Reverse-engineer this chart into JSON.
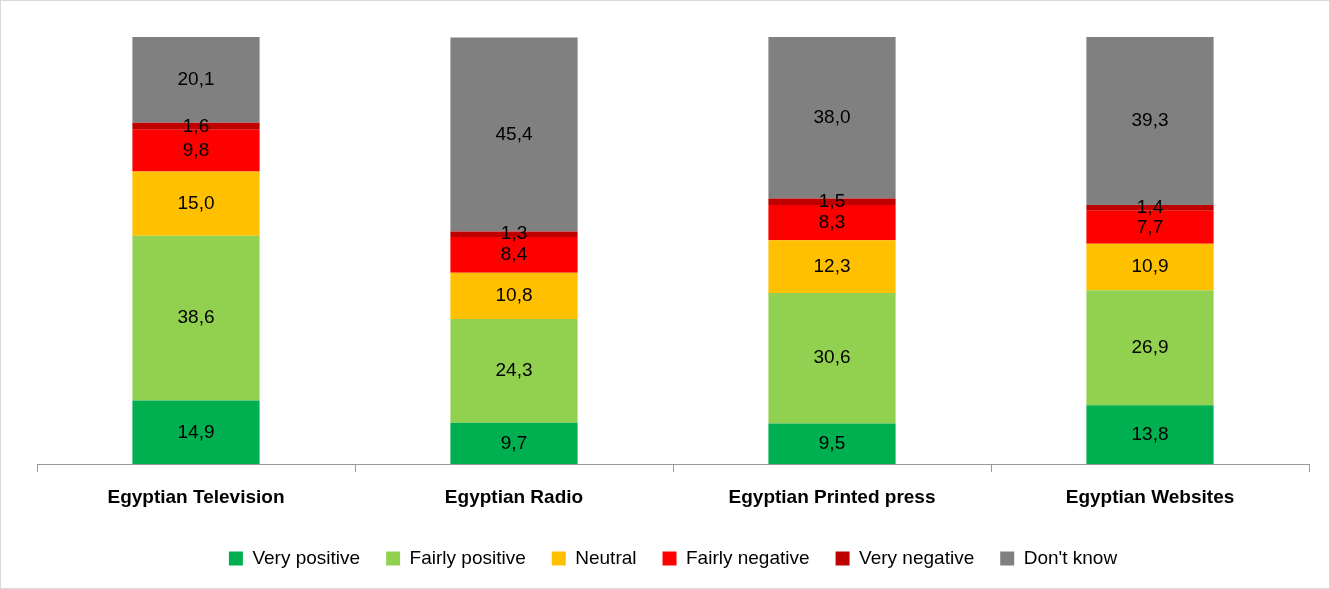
{
  "chart_data": {
    "type": "bar",
    "stacked": true,
    "categories": [
      "Egyptian Television",
      "Egyptian Radio",
      "Egyptian Printed press",
      "Egyptian Websites"
    ],
    "ylim": [
      0,
      100
    ],
    "tick_labels": "x",
    "grid": false,
    "legend": "bottom",
    "series": [
      {
        "name": "Very positive",
        "color": "#00b050",
        "values": [
          14.9,
          9.7,
          9.5,
          13.8
        ],
        "value_labels": [
          "14,9",
          "9,7",
          "9,5",
          "13,8"
        ]
      },
      {
        "name": "Fairly positive",
        "color": "#92d050",
        "values": [
          38.6,
          24.3,
          30.6,
          26.9
        ],
        "value_labels": [
          "38,6",
          "24,3",
          "30,6",
          "26,9"
        ]
      },
      {
        "name": "Neutral",
        "color": "#ffc000",
        "values": [
          15.0,
          10.8,
          12.3,
          10.9
        ],
        "value_labels": [
          "15,0",
          "10,8",
          "12,3",
          "10,9"
        ]
      },
      {
        "name": "Fairly negative",
        "color": "#ff0000",
        "values": [
          9.8,
          8.4,
          8.3,
          7.7
        ],
        "value_labels": [
          "9,8",
          "8,4",
          "8,3",
          "7,7"
        ]
      },
      {
        "name": "Very negative",
        "color": "#c00000",
        "values": [
          1.6,
          1.3,
          1.5,
          1.4
        ],
        "value_labels": [
          "1,6",
          "1,3",
          "1,5",
          "1,4"
        ]
      },
      {
        "name": "Don't know",
        "color": "#808080",
        "values": [
          20.1,
          45.4,
          38.0,
          39.3
        ],
        "value_labels": [
          "20,1",
          "45,4",
          "38,0",
          "39,3"
        ]
      }
    ]
  }
}
